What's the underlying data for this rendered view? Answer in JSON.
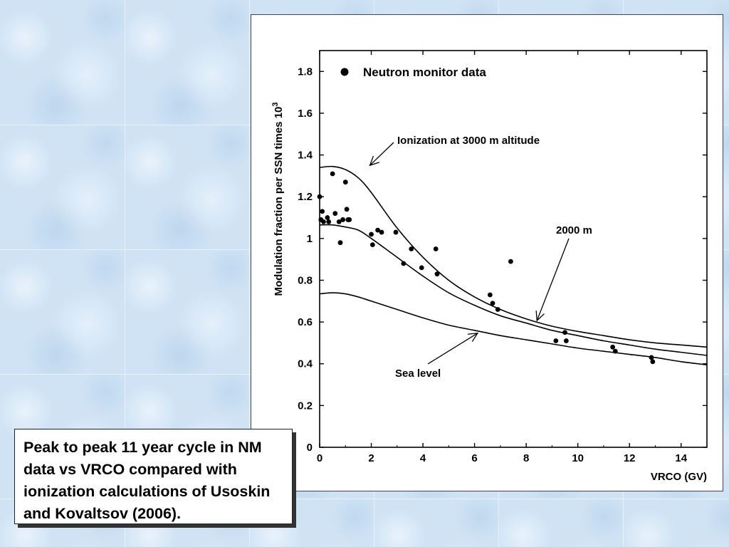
{
  "caption": {
    "text": "Peak to peak 11 year cycle in NM data vs VRCO compared with ionization calculations of Usoskin and Kovaltsov (2006)."
  },
  "chart_data": {
    "type": "scatter",
    "title": "",
    "xlabel": "VRCO (GV)",
    "ylabel_main": "Modulation fraction per SSN times 10",
    "ylabel_superscript": "3",
    "xlim": [
      0,
      15
    ],
    "ylim": [
      0,
      1.9
    ],
    "x_ticks": [
      0,
      2,
      4,
      6,
      8,
      10,
      12,
      14
    ],
    "y_ticks": [
      0,
      0.2,
      0.4,
      0.6,
      0.8,
      1,
      1.2,
      1.4,
      1.6,
      1.8
    ],
    "y_tick_labels": [
      "0",
      "0.2",
      "0.4",
      "0.6",
      "0.8",
      "1",
      "1.2",
      "1.4",
      "1.6",
      "1.8"
    ],
    "grid": false,
    "legend": {
      "position": "top-left",
      "entries": [
        "Neutron monitor data"
      ]
    },
    "series": [
      {
        "name": "Neutron monitor data",
        "kind": "points",
        "x": [
          0.0,
          0.05,
          0.1,
          0.15,
          0.3,
          0.35,
          0.5,
          0.6,
          0.75,
          0.8,
          0.9,
          1.0,
          1.05,
          1.1,
          1.15,
          2.0,
          2.05,
          2.25,
          2.4,
          2.95,
          3.25,
          3.55,
          3.95,
          4.5,
          4.55,
          6.6,
          6.7,
          6.9,
          7.4,
          9.15,
          9.5,
          9.55,
          11.35,
          11.45,
          12.85,
          12.9
        ],
        "y": [
          1.2,
          1.09,
          1.13,
          1.08,
          1.1,
          1.08,
          1.31,
          1.12,
          1.08,
          0.98,
          1.09,
          1.27,
          1.14,
          1.09,
          1.09,
          1.02,
          0.97,
          1.04,
          1.03,
          1.03,
          0.88,
          0.95,
          0.86,
          0.95,
          0.83,
          0.73,
          0.69,
          0.66,
          0.89,
          0.51,
          0.55,
          0.51,
          0.48,
          0.46,
          0.43,
          0.41
        ]
      },
      {
        "name": "Ionization at 3000 m altitude",
        "kind": "line",
        "x": [
          0,
          0.5,
          1,
          1.5,
          2,
          3,
          4,
          5,
          6,
          7,
          8,
          9,
          10,
          11,
          12,
          13,
          14,
          15
        ],
        "y": [
          1.34,
          1.345,
          1.33,
          1.29,
          1.22,
          1.05,
          0.91,
          0.8,
          0.72,
          0.66,
          0.615,
          0.58,
          0.555,
          0.535,
          0.515,
          0.5,
          0.49,
          0.48
        ]
      },
      {
        "name": "2000 m",
        "kind": "line",
        "x": [
          0,
          0.5,
          1,
          1.5,
          2,
          3,
          4,
          5,
          6,
          7,
          8,
          9,
          10,
          11,
          12,
          13,
          14,
          15
        ],
        "y": [
          1.065,
          1.065,
          1.055,
          1.04,
          1.0,
          0.91,
          0.82,
          0.74,
          0.68,
          0.63,
          0.595,
          0.56,
          0.535,
          0.51,
          0.49,
          0.47,
          0.455,
          0.44
        ]
      },
      {
        "name": "Sea level",
        "kind": "line",
        "x": [
          0,
          0.5,
          1,
          1.5,
          2,
          3,
          4,
          5,
          6,
          7,
          8,
          9,
          10,
          11,
          12,
          13,
          14,
          15
        ],
        "y": [
          0.735,
          0.74,
          0.735,
          0.72,
          0.7,
          0.66,
          0.62,
          0.585,
          0.56,
          0.535,
          0.515,
          0.495,
          0.475,
          0.46,
          0.445,
          0.43,
          0.41,
          0.395
        ]
      }
    ],
    "annotations": [
      {
        "text": "Ionization at 3000 m altitude",
        "points_to": [
          2.0,
          1.34
        ]
      },
      {
        "text": "2000 m",
        "points_to": [
          8.5,
          0.6
        ]
      },
      {
        "text": "Sea level",
        "points_to": [
          6.2,
          0.55
        ]
      }
    ]
  }
}
